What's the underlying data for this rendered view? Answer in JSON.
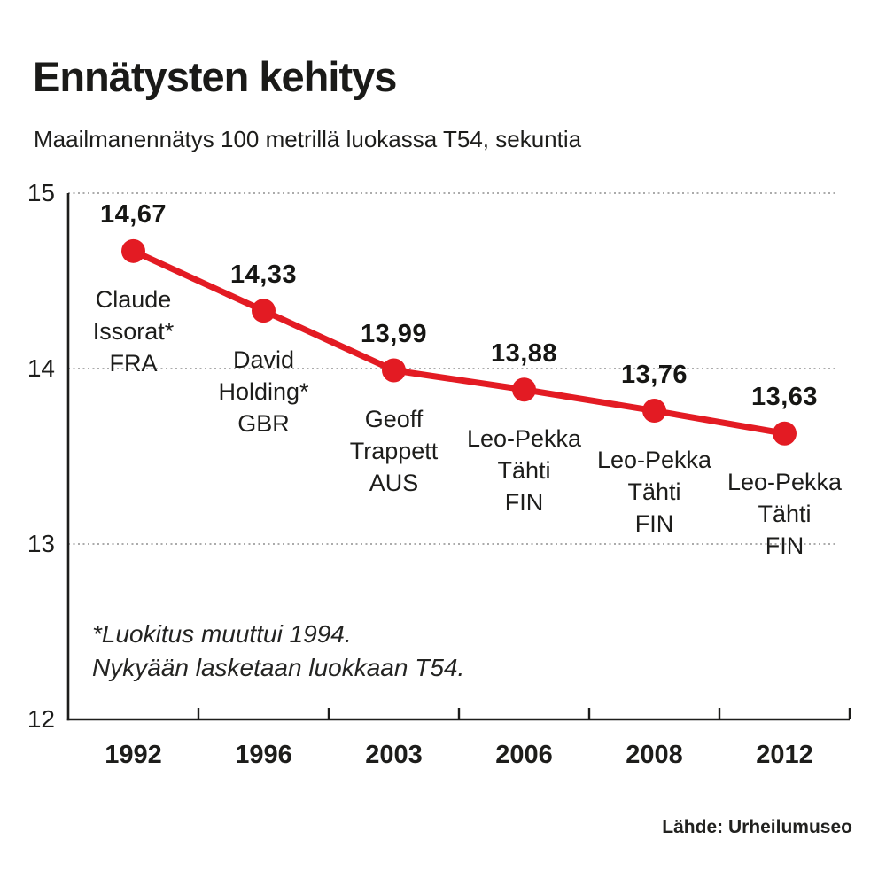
{
  "header": {
    "title": "Ennätysten kehitys",
    "subtitle": "Maailmanennätys 100 metrillä luokassa T54, sekuntia"
  },
  "chart_data": {
    "type": "line",
    "categories": [
      "1992",
      "1996",
      "2003",
      "2006",
      "2008",
      "2012"
    ],
    "values": [
      14.67,
      14.33,
      13.99,
      13.88,
      13.76,
      13.63
    ],
    "value_labels": [
      "14,67",
      "14,33",
      "13,99",
      "13,88",
      "13,76",
      "13,63"
    ],
    "point_annotations": [
      [
        "Claude",
        "Issorat*",
        "FRA"
      ],
      [
        "David",
        "Holding*",
        "GBR"
      ],
      [
        "Geoff",
        "Trappett",
        "AUS"
      ],
      [
        "Leo-Pekka",
        "Tähti",
        "FIN"
      ],
      [
        "Leo-Pekka",
        "Tähti",
        "FIN"
      ],
      [
        "Leo-Pekka",
        "Tähti",
        "FIN"
      ]
    ],
    "title": "Ennätysten kehitys",
    "xlabel": "",
    "ylabel": "",
    "ylim": [
      12,
      15
    ],
    "yticks": [
      15,
      14,
      13,
      12
    ],
    "grid": "horizontal-dotted",
    "legend": "none",
    "line_color": "#e31b23",
    "axis_color": "#1d1d1b",
    "grid_color": "#8f8f8f",
    "marker": "circle"
  },
  "footnote": {
    "line1": "*Luokitus muuttui 1994.",
    "line2": "Nykyään lasketaan luokkaan T54."
  },
  "source": {
    "label": "Lähde: Urheilumuseo"
  }
}
